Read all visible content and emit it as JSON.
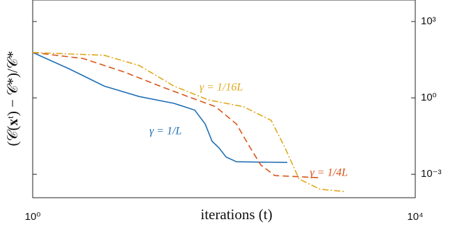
{
  "chart_data": {
    "type": "line",
    "x_label": "iterations (t)",
    "y_label": "(𝒞(𝐱ᵗ) − 𝒞*)/𝒞*",
    "log_x": true,
    "log_y": true,
    "xlim": [
      1,
      10000
    ],
    "xticks": [
      {
        "value": 1,
        "label": "10⁰"
      },
      {
        "value": 10000,
        "label": "10⁴"
      }
    ],
    "ylim": [
      0.00012,
      7000
    ],
    "yticks": [
      {
        "value": 0.001,
        "label": "10⁻³"
      },
      {
        "value": 1,
        "label": "10⁰"
      },
      {
        "value": 1000,
        "label": "10³"
      }
    ],
    "series": [
      {
        "name": "γ = 1/L",
        "color": "#1f6fb5",
        "dash": "solid",
        "x": [
          1,
          2.43,
          5.6,
          13,
          30,
          49.5,
          63.6,
          75,
          89,
          105,
          135,
          459
        ],
        "values": [
          61,
          13.6,
          2.9,
          1.13,
          0.61,
          0.33,
          0.094,
          0.02,
          0.0107,
          0.0048,
          0.0031,
          0.0029
        ]
      },
      {
        "name": "γ = 1/4L",
        "color": "#d95319",
        "dash": "dashed",
        "x": [
          1,
          3.4,
          9.3,
          21.4,
          41.9,
          81.8,
          135,
          189,
          243,
          340,
          1009
        ],
        "values": [
          61,
          34.8,
          10,
          2.9,
          1.13,
          0.45,
          0.094,
          0.0107,
          0.0023,
          0.00089,
          0.00073
        ]
      },
      {
        "name": "γ = 1/16L",
        "color": "#e0a81c",
        "dash": "dashdot",
        "x": [
          1,
          5.6,
          13,
          30,
          69,
          160,
          312,
          436,
          610,
          1009,
          1811
        ],
        "values": [
          61,
          47,
          18.6,
          2.9,
          0.83,
          0.45,
          0.13,
          0.0107,
          0.00065,
          0.00026,
          0.00021
        ]
      }
    ]
  }
}
